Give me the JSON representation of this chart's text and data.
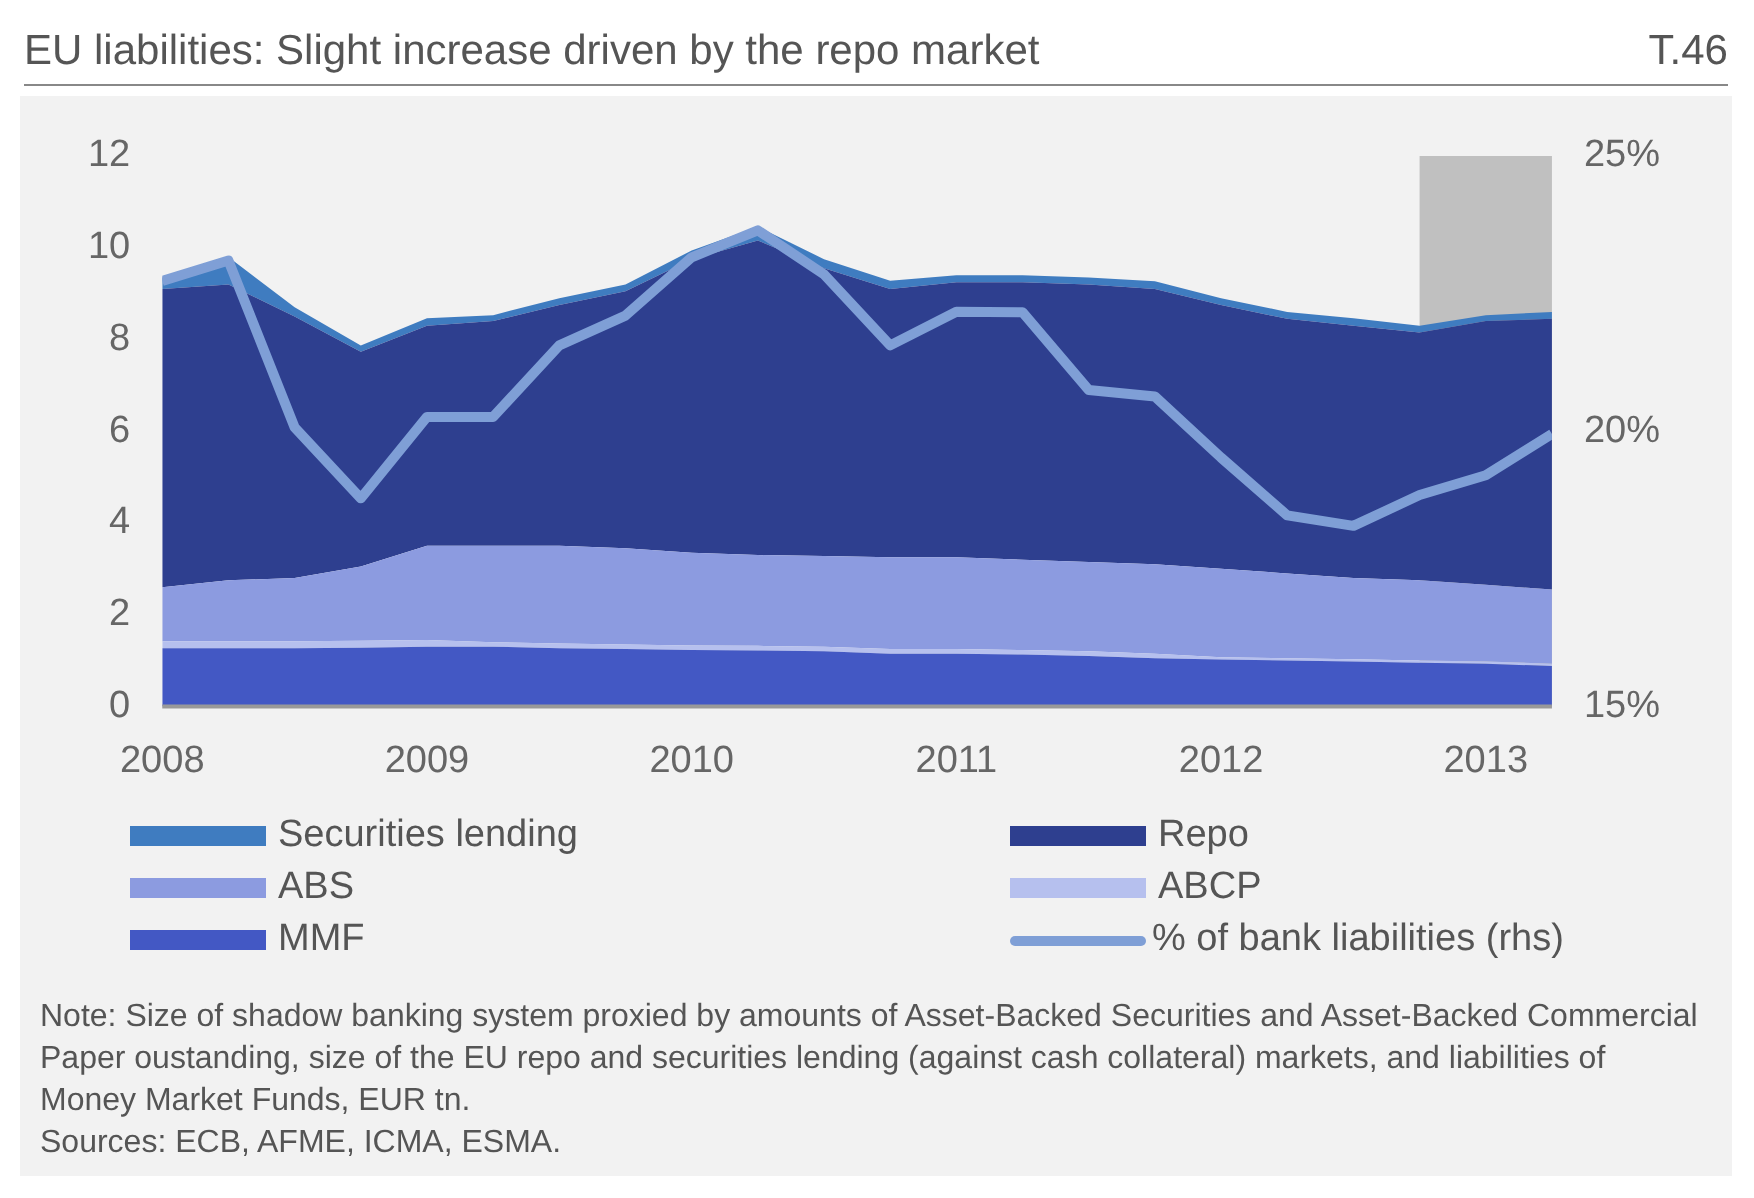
{
  "chart_data": {
    "type": "area",
    "title": "EU liabilities: Slight increase driven by the repo market",
    "stacked": true,
    "x": [
      2008,
      2008.25,
      2008.5,
      2008.75,
      2009,
      2009.25,
      2009.5,
      2009.75,
      2010,
      2010.25,
      2010.5,
      2010.75,
      2011,
      2011.25,
      2011.5,
      2011.75,
      2012,
      2012.25,
      2012.5,
      2012.75,
      2013,
      2013.25
    ],
    "series": [
      {
        "name": "MMF",
        "color": "#4358c4",
        "values": [
          1.27,
          1.27,
          1.27,
          1.28,
          1.3,
          1.3,
          1.27,
          1.25,
          1.23,
          1.22,
          1.2,
          1.15,
          1.15,
          1.13,
          1.1,
          1.05,
          1.02,
          1.0,
          0.98,
          0.95,
          0.93,
          0.88
        ]
      },
      {
        "name": "ABCP",
        "color": "#b6c0ee",
        "values": [
          0.15,
          0.15,
          0.15,
          0.15,
          0.15,
          0.1,
          0.1,
          0.1,
          0.1,
          0.1,
          0.1,
          0.1,
          0.1,
          0.1,
          0.1,
          0.1,
          0.05,
          0.05,
          0.05,
          0.05,
          0.05,
          0.05
        ]
      },
      {
        "name": "ABS",
        "color": "#8c9be0",
        "values": [
          1.18,
          1.33,
          1.38,
          1.62,
          2.05,
          2.1,
          2.13,
          2.1,
          2.02,
          1.98,
          1.98,
          2.0,
          2.0,
          1.97,
          1.95,
          1.95,
          1.93,
          1.85,
          1.77,
          1.75,
          1.67,
          1.62
        ]
      },
      {
        "name": "Repo",
        "color": "#2e3f8f",
        "values": [
          6.5,
          6.45,
          5.7,
          4.68,
          4.8,
          4.9,
          5.25,
          5.6,
          6.4,
          6.86,
          6.27,
          5.85,
          6.0,
          6.05,
          6.05,
          6.0,
          5.75,
          5.55,
          5.5,
          5.4,
          5.75,
          5.9
        ]
      },
      {
        "name": "Securities lending",
        "color": "#3f7cc0",
        "values": [
          0.25,
          0.6,
          0.2,
          0.14,
          0.16,
          0.13,
          0.15,
          0.15,
          0.19,
          0.3,
          0.2,
          0.18,
          0.15,
          0.15,
          0.15,
          0.17,
          0.15,
          0.15,
          0.16,
          0.15,
          0.13,
          0.15
        ]
      },
      {
        "name": "% of bank liabilities (rhs)",
        "type": "line",
        "axis": "y2",
        "color": "#7f9fd6",
        "values": [
          22.73,
          23.1,
          20.07,
          18.78,
          20.26,
          20.26,
          21.56,
          22.1,
          23.16,
          23.65,
          22.85,
          21.56,
          22.17,
          22.16,
          20.75,
          20.63,
          19.52,
          18.47,
          18.28,
          18.84,
          19.2,
          19.95
        ]
      }
    ],
    "xlim": [
      2008,
      2013.25
    ],
    "xticks": [
      2008,
      2009,
      2010,
      2011,
      2012,
      2013
    ],
    "ylim": [
      0,
      12
    ],
    "yticks": [
      0,
      2,
      4,
      6,
      8,
      10,
      12
    ],
    "y2lim": [
      15,
      25
    ],
    "y2ticks": [
      {
        "value": 15,
        "label": "15%"
      },
      {
        "value": 20,
        "label": "20%"
      },
      {
        "value": 25,
        "label": "25%"
      }
    ],
    "bands": [
      {
        "axis": "x",
        "from": 2012.75,
        "to": 2013.25,
        "color": "#c0c0c0"
      }
    ],
    "grid": false,
    "legend": "bottom",
    "marker": "none",
    "annotations": [
      "T.46",
      "Note: Size of shadow banking system proxied by amounts of Asset-Backed Securities and Asset-Backed Commercial Paper oustanding, size of the EU repo and securities lending (against cash collateral) markets, and liabilities of Money Market Funds, EUR tn.",
      "Sources: ECB, AFME, ICMA, ESMA."
    ]
  }
}
